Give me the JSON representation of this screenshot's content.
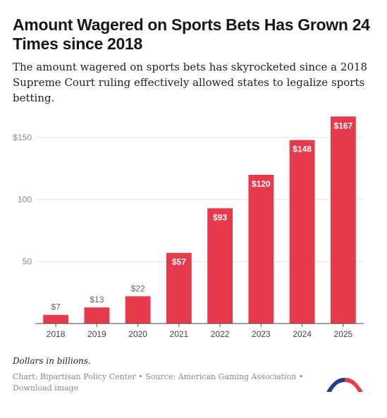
{
  "title": "Amount Wagered on Sports Bets Has Grown 24 Times since 2018",
  "subtitle": "The amount wagered on sports bets has skyrocketed since a 2018 Supreme Court ruling effectively allowed states to legalize sports betting.",
  "note": "Dollars in billions.",
  "footer": {
    "chart_credit": "Chart: Bipartisan Policy Center",
    "separator": " • ",
    "source": "Source: American Gaming Association",
    "download": "Download image"
  },
  "colors": {
    "bar": "#e63b4a",
    "logo_blue": "#1f3e8c",
    "logo_red": "#e63b4a"
  },
  "chart_data": {
    "type": "bar",
    "title": "Amount Wagered on Sports Bets Has Grown 24 Times since 2018",
    "xlabel": "",
    "ylabel": "",
    "categories": [
      "2018",
      "2019",
      "2020",
      "2021",
      "2022",
      "2023",
      "2024",
      "2025"
    ],
    "values": [
      7,
      13,
      22,
      57,
      93,
      120,
      148,
      167
    ],
    "data_labels": [
      "$7",
      "$13",
      "$22",
      "$57",
      "$93",
      "$120",
      "$148",
      "$167"
    ],
    "y_ticks": [
      50,
      100,
      150
    ],
    "y_tick_labels": [
      "50",
      "100",
      "$150"
    ],
    "ylim": [
      0,
      170
    ],
    "grid": true,
    "legend": "none"
  }
}
